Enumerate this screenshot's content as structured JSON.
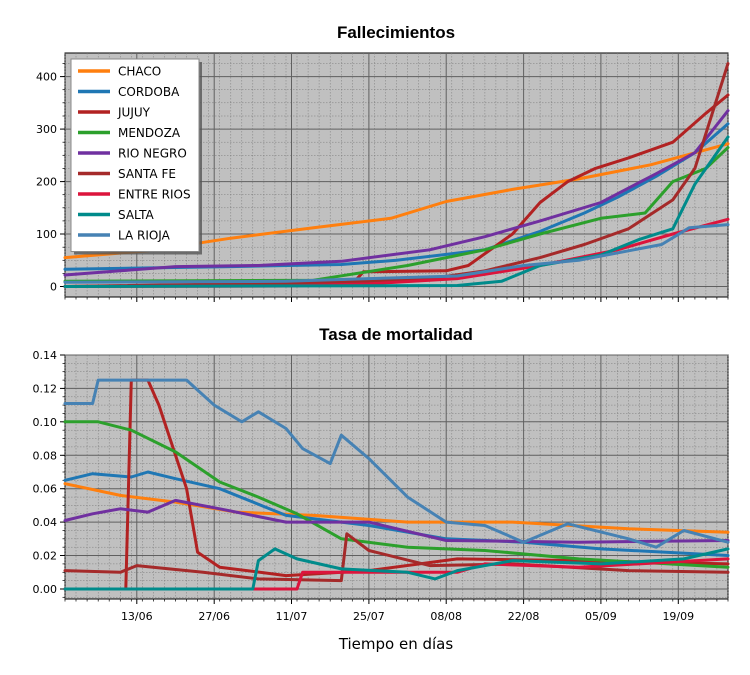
{
  "chart_data": [
    {
      "type": "line",
      "title": "Fallecimientos",
      "xlabel": "",
      "ylabel": "",
      "xlim": [
        "2020-05-31",
        "2020-09-28"
      ],
      "ylim": [
        -20,
        445
      ],
      "yticks": [
        0,
        100,
        200,
        300,
        400
      ],
      "grid": true,
      "legend": "top-left",
      "series": [
        {
          "name": "CHACO",
          "color": "#ff7f0e",
          "points": [
            [
              "2020-05-31",
              55
            ],
            [
              "2020-06-15",
              68
            ],
            [
              "2020-06-30",
              92
            ],
            [
              "2020-07-15",
              112
            ],
            [
              "2020-07-29",
              130
            ],
            [
              "2020-08-08",
              162
            ],
            [
              "2020-08-20",
              185
            ],
            [
              "2020-09-01",
              205
            ],
            [
              "2020-09-14",
              232
            ],
            [
              "2020-09-28",
              272
            ]
          ]
        },
        {
          "name": "CORDOBA",
          "color": "#1f77b4",
          "points": [
            [
              "2020-05-31",
              33
            ],
            [
              "2020-06-30",
              38
            ],
            [
              "2020-07-20",
              42
            ],
            [
              "2020-07-30",
              50
            ],
            [
              "2020-08-15",
              70
            ],
            [
              "2020-08-25",
              105
            ],
            [
              "2020-09-02",
              140
            ],
            [
              "2020-09-08",
              170
            ],
            [
              "2020-09-15",
              210
            ],
            [
              "2020-09-22",
              255
            ],
            [
              "2020-09-28",
              310
            ]
          ]
        },
        {
          "name": "JUJUY",
          "color": "#b22222",
          "points": [
            [
              "2020-05-31",
              0
            ],
            [
              "2020-07-20",
              3
            ],
            [
              "2020-07-22",
              5
            ],
            [
              "2020-07-24",
              28
            ],
            [
              "2020-08-08",
              30
            ],
            [
              "2020-08-12",
              40
            ],
            [
              "2020-08-20",
              100
            ],
            [
              "2020-08-25",
              160
            ],
            [
              "2020-08-30",
              200
            ],
            [
              "2020-09-04",
              225
            ],
            [
              "2020-09-10",
              245
            ],
            [
              "2020-09-18",
              275
            ],
            [
              "2020-09-24",
              330
            ],
            [
              "2020-09-28",
              365
            ]
          ]
        },
        {
          "name": "MENDOZA",
          "color": "#2ca02c",
          "points": [
            [
              "2020-05-31",
              10
            ],
            [
              "2020-07-15",
              12
            ],
            [
              "2020-08-01",
              40
            ],
            [
              "2020-08-15",
              70
            ],
            [
              "2020-08-25",
              100
            ],
            [
              "2020-09-05",
              130
            ],
            [
              "2020-09-13",
              140
            ],
            [
              "2020-09-18",
              200
            ],
            [
              "2020-09-24",
              225
            ],
            [
              "2020-09-28",
              265
            ]
          ]
        },
        {
          "name": "RIO NEGRO",
          "color": "#7030a0",
          "points": [
            [
              "2020-05-31",
              22
            ],
            [
              "2020-06-10",
              30
            ],
            [
              "2020-06-20",
              38
            ],
            [
              "2020-07-05",
              40
            ],
            [
              "2020-07-20",
              48
            ],
            [
              "2020-08-05",
              70
            ],
            [
              "2020-08-15",
              95
            ],
            [
              "2020-08-25",
              125
            ],
            [
              "2020-09-05",
              160
            ],
            [
              "2020-09-15",
              215
            ],
            [
              "2020-09-22",
              255
            ],
            [
              "2020-09-28",
              335
            ]
          ]
        },
        {
          "name": "SANTA FE",
          "color": "#a52a2a",
          "points": [
            [
              "2020-05-31",
              0
            ],
            [
              "2020-07-20",
              8
            ],
            [
              "2020-08-05",
              15
            ],
            [
              "2020-08-15",
              30
            ],
            [
              "2020-08-25",
              55
            ],
            [
              "2020-09-02",
              80
            ],
            [
              "2020-09-10",
              110
            ],
            [
              "2020-09-18",
              165
            ],
            [
              "2020-09-22",
              225
            ],
            [
              "2020-09-28",
              425
            ]
          ]
        },
        {
          "name": "ENTRE RIOS",
          "color": "#dc143c",
          "points": [
            [
              "2020-05-31",
              0
            ],
            [
              "2020-07-10",
              1
            ],
            [
              "2020-07-25",
              5
            ],
            [
              "2020-08-10",
              15
            ],
            [
              "2020-08-25",
              40
            ],
            [
              "2020-09-08",
              70
            ],
            [
              "2020-09-18",
              100
            ],
            [
              "2020-09-28",
              128
            ]
          ]
        },
        {
          "name": "SALTA",
          "color": "#008b8b",
          "points": [
            [
              "2020-05-31",
              0
            ],
            [
              "2020-08-10",
              2
            ],
            [
              "2020-08-18",
              10
            ],
            [
              "2020-08-25",
              40
            ],
            [
              "2020-09-05",
              60
            ],
            [
              "2020-09-12",
              90
            ],
            [
              "2020-09-18",
              110
            ],
            [
              "2020-09-22",
              195
            ],
            [
              "2020-09-28",
              285
            ]
          ]
        },
        {
          "name": "LA RIOJA",
          "color": "#4682b4",
          "points": [
            [
              "2020-05-31",
              8
            ],
            [
              "2020-07-10",
              10
            ],
            [
              "2020-07-25",
              15
            ],
            [
              "2020-08-10",
              20
            ],
            [
              "2020-08-22",
              40
            ],
            [
              "2020-09-01",
              50
            ],
            [
              "2020-09-10",
              68
            ],
            [
              "2020-09-16",
              80
            ],
            [
              "2020-09-21",
              112
            ],
            [
              "2020-09-28",
              118
            ]
          ]
        }
      ]
    },
    {
      "type": "line",
      "title": "Tasa de mortalidad",
      "xlabel": "Tiempo en días",
      "ylabel": "",
      "xlim": [
        "2020-05-31",
        "2020-09-28"
      ],
      "ylim": [
        -0.006,
        0.14
      ],
      "yticks": [
        "0.00",
        "0.02",
        "0.04",
        "0.06",
        "0.08",
        "0.10",
        "0.12",
        "0.14"
      ],
      "xticks": [
        [
          "2020-06-13",
          "13/06"
        ],
        [
          "2020-06-27",
          "27/06"
        ],
        [
          "2020-07-11",
          "11/07"
        ],
        [
          "2020-07-25",
          "25/07"
        ],
        [
          "2020-08-08",
          "08/08"
        ],
        [
          "2020-08-22",
          "22/08"
        ],
        [
          "2020-09-05",
          "05/09"
        ],
        [
          "2020-09-19",
          "19/09"
        ]
      ],
      "grid": true,
      "series": [
        {
          "name": "CHACO",
          "color": "#ff7f0e",
          "points": [
            [
              "2020-05-31",
              0.063
            ],
            [
              "2020-06-10",
              0.056
            ],
            [
              "2020-06-20",
              0.052
            ],
            [
              "2020-07-01",
              0.046
            ],
            [
              "2020-07-15",
              0.044
            ],
            [
              "2020-08-01",
              0.04
            ],
            [
              "2020-08-20",
              0.04
            ],
            [
              "2020-09-10",
              0.036
            ],
            [
              "2020-09-28",
              0.034
            ]
          ]
        },
        {
          "name": "CORDOBA",
          "color": "#1f77b4",
          "points": [
            [
              "2020-05-31",
              0.065
            ],
            [
              "2020-06-05",
              0.069
            ],
            [
              "2020-06-12",
              0.067
            ],
            [
              "2020-06-15",
              0.07
            ],
            [
              "2020-06-20",
              0.066
            ],
            [
              "2020-06-28",
              0.06
            ],
            [
              "2020-07-10",
              0.044
            ],
            [
              "2020-07-25",
              0.038
            ],
            [
              "2020-08-08",
              0.03
            ],
            [
              "2020-08-22",
              0.028
            ],
            [
              "2020-09-05",
              0.024
            ],
            [
              "2020-09-28",
              0.02
            ]
          ]
        },
        {
          "name": "JUJUY",
          "color": "#b22222",
          "points": [
            [
              "2020-05-31",
              0
            ],
            [
              "2020-06-11",
              0
            ],
            [
              "2020-06-12",
              0.125
            ],
            [
              "2020-06-15",
              0.125
            ],
            [
              "2020-06-17",
              0.11
            ],
            [
              "2020-06-22",
              0.06
            ],
            [
              "2020-06-24",
              0.022
            ],
            [
              "2020-06-28",
              0.013
            ],
            [
              "2020-07-10",
              0.008
            ],
            [
              "2020-07-25",
              0.011
            ],
            [
              "2020-08-10",
              0.018
            ],
            [
              "2020-09-01",
              0.017
            ],
            [
              "2020-09-28",
              0.015
            ]
          ]
        },
        {
          "name": "MENDOZA",
          "color": "#2ca02c",
          "points": [
            [
              "2020-05-31",
              0.1
            ],
            [
              "2020-06-06",
              0.1
            ],
            [
              "2020-06-12",
              0.095
            ],
            [
              "2020-06-20",
              0.082
            ],
            [
              "2020-06-28",
              0.064
            ],
            [
              "2020-07-05",
              0.055
            ],
            [
              "2020-07-12",
              0.045
            ],
            [
              "2020-07-20",
              0.03
            ],
            [
              "2020-08-01",
              0.025
            ],
            [
              "2020-08-15",
              0.023
            ],
            [
              "2020-09-01",
              0.018
            ],
            [
              "2020-09-28",
              0.013
            ]
          ]
        },
        {
          "name": "RIO NEGRO",
          "color": "#7030a0",
          "points": [
            [
              "2020-05-31",
              0.041
            ],
            [
              "2020-06-05",
              0.045
            ],
            [
              "2020-06-10",
              0.048
            ],
            [
              "2020-06-15",
              0.046
            ],
            [
              "2020-06-20",
              0.053
            ],
            [
              "2020-06-28",
              0.048
            ],
            [
              "2020-07-10",
              0.04
            ],
            [
              "2020-07-25",
              0.04
            ],
            [
              "2020-08-08",
              0.029
            ],
            [
              "2020-09-01",
              0.028
            ],
            [
              "2020-09-28",
              0.029
            ]
          ]
        },
        {
          "name": "SANTA FE",
          "color": "#a52a2a",
          "points": [
            [
              "2020-05-31",
              0.011
            ],
            [
              "2020-06-10",
              0.01
            ],
            [
              "2020-06-13",
              0.014
            ],
            [
              "2020-06-25",
              0.01
            ],
            [
              "2020-07-05",
              0.006
            ],
            [
              "2020-07-20",
              0.005
            ],
            [
              "2020-07-21",
              0.033
            ],
            [
              "2020-07-25",
              0.023
            ],
            [
              "2020-08-05",
              0.014
            ],
            [
              "2020-08-20",
              0.015
            ],
            [
              "2020-09-10",
              0.011
            ],
            [
              "2020-09-28",
              0.01
            ]
          ]
        },
        {
          "name": "ENTRE RIOS",
          "color": "#dc143c",
          "points": [
            [
              "2020-05-31",
              0
            ],
            [
              "2020-07-12",
              0
            ],
            [
              "2020-07-13",
              0.01
            ],
            [
              "2020-07-25",
              0.01
            ],
            [
              "2020-08-10",
              0.01
            ],
            [
              "2020-08-15",
              0.015
            ],
            [
              "2020-09-01",
              0.013
            ],
            [
              "2020-09-28",
              0.018
            ]
          ]
        },
        {
          "name": "SALTA",
          "color": "#008b8b",
          "points": [
            [
              "2020-05-31",
              0
            ],
            [
              "2020-07-04",
              0
            ],
            [
              "2020-07-05",
              0.017
            ],
            [
              "2020-07-08",
              0.024
            ],
            [
              "2020-07-12",
              0.018
            ],
            [
              "2020-07-20",
              0.012
            ],
            [
              "2020-08-01",
              0.01
            ],
            [
              "2020-08-06",
              0.006
            ],
            [
              "2020-08-10",
              0.011
            ],
            [
              "2020-08-20",
              0.017
            ],
            [
              "2020-09-05",
              0.015
            ],
            [
              "2020-09-20",
              0.018
            ],
            [
              "2020-09-28",
              0.024
            ]
          ]
        },
        {
          "name": "LA RIOJA",
          "color": "#4682b4",
          "points": [
            [
              "2020-05-31",
              0.111
            ],
            [
              "2020-06-05",
              0.111
            ],
            [
              "2020-06-06",
              0.125
            ],
            [
              "2020-06-22",
              0.125
            ],
            [
              "2020-06-27",
              0.11
            ],
            [
              "2020-07-02",
              0.1
            ],
            [
              "2020-07-05",
              0.106
            ],
            [
              "2020-07-10",
              0.096
            ],
            [
              "2020-07-13",
              0.084
            ],
            [
              "2020-07-18",
              0.075
            ],
            [
              "2020-07-20",
              0.092
            ],
            [
              "2020-07-25",
              0.078
            ],
            [
              "2020-08-01",
              0.055
            ],
            [
              "2020-08-08",
              0.04
            ],
            [
              "2020-08-15",
              0.038
            ],
            [
              "2020-08-22",
              0.028
            ],
            [
              "2020-08-30",
              0.039
            ],
            [
              "2020-09-10",
              0.03
            ],
            [
              "2020-09-15",
              0.025
            ],
            [
              "2020-09-20",
              0.035
            ],
            [
              "2020-09-28",
              0.028
            ]
          ]
        }
      ]
    }
  ]
}
